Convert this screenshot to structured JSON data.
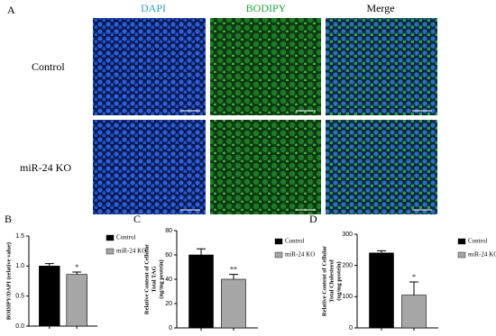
{
  "panel_a": {
    "label": "A",
    "columns": [
      "DAPI",
      "BODIPY",
      "Merge"
    ],
    "rows": [
      "Control",
      "miR-24 KO"
    ]
  },
  "chart_data": [
    {
      "type": "bar",
      "panel_label": "B",
      "ylabel": [
        "BODIPY/DAPI (relative value)"
      ],
      "categories": [
        "Control",
        "miR-24 KO"
      ],
      "values": [
        1.0,
        0.86
      ],
      "errors": [
        0.04,
        0.04
      ],
      "colors": [
        "#000000",
        "#a6a6a6"
      ],
      "significance": "*",
      "ylim": [
        0,
        1.5
      ],
      "yticks": [
        {
          "value": 0,
          "label": "0.0"
        },
        0.5,
        {
          "value": 1,
          "label": "1.0"
        },
        1.5
      ]
    },
    {
      "type": "bar",
      "panel_label": "C",
      "ylabel": [
        "Relative Content of Cellular",
        "Total TAG",
        "(ng/mg protein)"
      ],
      "categories": [
        "Control",
        "miR-24 KO"
      ],
      "values": [
        60,
        40
      ],
      "errors": [
        5,
        4
      ],
      "colors": [
        "#000000",
        "#a6a6a6"
      ],
      "significance": "**",
      "ylim": [
        0,
        80
      ],
      "yticks": [
        0,
        20,
        40,
        60,
        80
      ]
    },
    {
      "type": "bar",
      "panel_label": "D",
      "ylabel": [
        "Relative Content of Cellular",
        "Total Cholesterol",
        "(ug/mg protein)"
      ],
      "categories": [
        "Control",
        "miR-24 KO"
      ],
      "values": [
        240,
        105
      ],
      "errors": [
        7,
        42
      ],
      "colors": [
        "#000000",
        "#a6a6a6"
      ],
      "significance": "*",
      "ylim": [
        0,
        300
      ],
      "yticks": [
        0,
        100,
        200,
        300
      ]
    }
  ]
}
